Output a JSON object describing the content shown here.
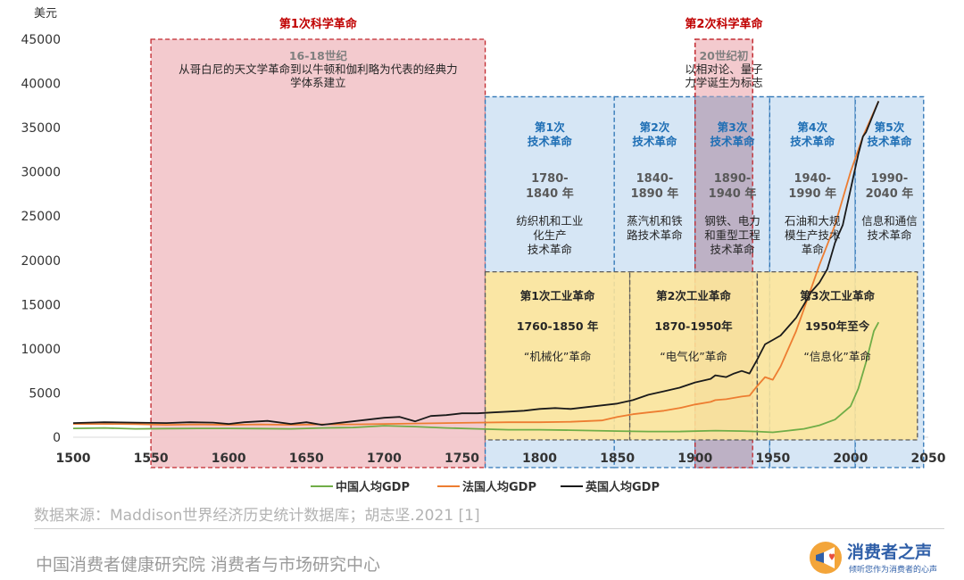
{
  "chart_data": {
    "type": "line",
    "ylabel": "美元",
    "xlim": [
      1500,
      2050
    ],
    "ylim": [
      0,
      45000
    ],
    "x_ticks": [
      1500,
      1550,
      1600,
      1650,
      1700,
      1750,
      1800,
      1850,
      1900,
      1950,
      2000,
      2050
    ],
    "y_ticks": [
      0,
      5000,
      10000,
      15000,
      20000,
      25000,
      30000,
      35000,
      40000,
      45000
    ],
    "legend_position": "bottom",
    "series": [
      {
        "name": "中国人均GDP",
        "color": "#70ad47",
        "points": [
          [
            1500,
            1000
          ],
          [
            1520,
            1050
          ],
          [
            1540,
            950
          ],
          [
            1560,
            980
          ],
          [
            1580,
            1000
          ],
          [
            1600,
            1000
          ],
          [
            1620,
            980
          ],
          [
            1640,
            950
          ],
          [
            1660,
            1050
          ],
          [
            1680,
            1100
          ],
          [
            1700,
            1300
          ],
          [
            1720,
            1200
          ],
          [
            1740,
            1050
          ],
          [
            1760,
            950
          ],
          [
            1780,
            850
          ],
          [
            1800,
            850
          ],
          [
            1820,
            800
          ],
          [
            1850,
            700
          ],
          [
            1870,
            650
          ],
          [
            1890,
            650
          ],
          [
            1913,
            750
          ],
          [
            1930,
            700
          ],
          [
            1940,
            650
          ],
          [
            1950,
            550
          ],
          [
            1960,
            750
          ],
          [
            1970,
            950
          ],
          [
            1980,
            1350
          ],
          [
            1990,
            2000
          ],
          [
            2000,
            3500
          ],
          [
            2005,
            5500
          ],
          [
            2010,
            8500
          ],
          [
            2015,
            12000
          ],
          [
            2018,
            13000
          ]
        ]
      },
      {
        "name": "法国人均GDP",
        "color": "#ed7d31",
        "points": [
          [
            1500,
            1500
          ],
          [
            1520,
            1500
          ],
          [
            1540,
            1480
          ],
          [
            1560,
            1400
          ],
          [
            1580,
            1450
          ],
          [
            1600,
            1400
          ],
          [
            1620,
            1450
          ],
          [
            1640,
            1400
          ],
          [
            1660,
            1450
          ],
          [
            1680,
            1450
          ],
          [
            1700,
            1500
          ],
          [
            1720,
            1550
          ],
          [
            1740,
            1600
          ],
          [
            1760,
            1650
          ],
          [
            1780,
            1700
          ],
          [
            1800,
            1700
          ],
          [
            1820,
            1750
          ],
          [
            1840,
            1900
          ],
          [
            1850,
            2300
          ],
          [
            1860,
            2600
          ],
          [
            1870,
            2800
          ],
          [
            1880,
            3000
          ],
          [
            1890,
            3300
          ],
          [
            1900,
            3700
          ],
          [
            1910,
            4000
          ],
          [
            1913,
            4200
          ],
          [
            1920,
            4300
          ],
          [
            1930,
            4600
          ],
          [
            1935,
            4700
          ],
          [
            1940,
            5800
          ],
          [
            1945,
            6800
          ],
          [
            1950,
            6500
          ],
          [
            1955,
            8000
          ],
          [
            1960,
            10000
          ],
          [
            1965,
            12000
          ],
          [
            1970,
            14500
          ],
          [
            1975,
            17000
          ],
          [
            1980,
            19500
          ],
          [
            1990,
            24000
          ],
          [
            2000,
            30000
          ],
          [
            2008,
            34000
          ],
          [
            2018,
            38000
          ]
        ]
      },
      {
        "name": "英国人均GDP",
        "color": "#1a1a1a",
        "points": [
          [
            1500,
            1600
          ],
          [
            1510,
            1650
          ],
          [
            1520,
            1700
          ],
          [
            1540,
            1650
          ],
          [
            1560,
            1600
          ],
          [
            1575,
            1700
          ],
          [
            1590,
            1650
          ],
          [
            1600,
            1500
          ],
          [
            1610,
            1700
          ],
          [
            1625,
            1850
          ],
          [
            1640,
            1500
          ],
          [
            1650,
            1700
          ],
          [
            1660,
            1400
          ],
          [
            1670,
            1600
          ],
          [
            1680,
            1800
          ],
          [
            1690,
            2000
          ],
          [
            1700,
            2200
          ],
          [
            1710,
            2300
          ],
          [
            1720,
            1800
          ],
          [
            1730,
            2400
          ],
          [
            1740,
            2500
          ],
          [
            1750,
            2700
          ],
          [
            1760,
            2700
          ],
          [
            1770,
            2800
          ],
          [
            1780,
            2900
          ],
          [
            1790,
            3000
          ],
          [
            1800,
            3200
          ],
          [
            1810,
            3300
          ],
          [
            1820,
            3200
          ],
          [
            1830,
            3400
          ],
          [
            1840,
            3600
          ],
          [
            1850,
            3800
          ],
          [
            1860,
            4200
          ],
          [
            1870,
            4800
          ],
          [
            1880,
            5200
          ],
          [
            1890,
            5600
          ],
          [
            1900,
            6200
          ],
          [
            1910,
            6600
          ],
          [
            1913,
            7000
          ],
          [
            1920,
            6800
          ],
          [
            1925,
            7200
          ],
          [
            1930,
            7500
          ],
          [
            1935,
            7200
          ],
          [
            1940,
            8800
          ],
          [
            1945,
            10500
          ],
          [
            1950,
            11000
          ],
          [
            1955,
            11500
          ],
          [
            1960,
            12500
          ],
          [
            1965,
            13500
          ],
          [
            1970,
            15000
          ],
          [
            1975,
            16500
          ],
          [
            1980,
            17500
          ],
          [
            1985,
            19000
          ],
          [
            1990,
            22000
          ],
          [
            1995,
            24000
          ],
          [
            2000,
            28000
          ],
          [
            2005,
            32000
          ],
          [
            2008,
            34000
          ],
          [
            2010,
            34500
          ],
          [
            2018,
            38000
          ]
        ]
      }
    ],
    "eras": [
      {
        "kind": "science",
        "range": [
          1550,
          1765
        ],
        "y_top": 45000,
        "title": "第1次科学革命",
        "period": "16-18世纪",
        "desc": [
          "从哥白尼的天文学革命到以牛顿和伽利略为代表的经典力",
          "学体系建立"
        ]
      },
      {
        "kind": "science",
        "range": [
          1900,
          1937
        ],
        "y_top": 45000,
        "title": "第2次科学革命",
        "period": "20世纪初",
        "desc": [
          "以相对论、量子",
          "力学诞生为标志"
        ]
      },
      {
        "kind": "tech",
        "range": [
          1765,
          1848
        ],
        "y_top": 38500,
        "title": [
          "第1次",
          "技术革命"
        ],
        "period": [
          "1780-",
          "1840 年"
        ],
        "desc": [
          "纺织机和工业",
          "化生产",
          "技术革命"
        ]
      },
      {
        "kind": "tech",
        "range": [
          1848,
          1900
        ],
        "y_top": 38500,
        "title": [
          "第2次",
          "技术革命"
        ],
        "period": [
          "1840-",
          "1890 年"
        ],
        "desc": [
          "蒸汽机和铁",
          "路技术革命"
        ]
      },
      {
        "kind": "tech",
        "range": [
          1900,
          1948
        ],
        "y_top": 38500,
        "title": [
          "第3次",
          "技术革命"
        ],
        "period": [
          "1890-",
          "1940 年"
        ],
        "desc": [
          "钢铁、电力",
          "和重型工程",
          "技术革命"
        ]
      },
      {
        "kind": "tech",
        "range": [
          1948,
          2003
        ],
        "y_top": 38500,
        "title": [
          "第4次",
          "技术革命"
        ],
        "period": [
          "1940-",
          "1990 年"
        ],
        "desc": [
          "石油和大规",
          "模生产技术",
          "革命"
        ]
      },
      {
        "kind": "tech",
        "range": [
          2003,
          2047
        ],
        "y_top": 38500,
        "title": [
          "第5次",
          "技术革命"
        ],
        "period": [
          "1990-",
          "2040 年"
        ],
        "desc": [
          "信息和通信",
          "技术革命"
        ]
      },
      {
        "kind": "industrial",
        "range": [
          1765,
          1858
        ],
        "y_range": [
          -300,
          18700
        ],
        "title": "第1次工业革命",
        "period": "1760-1850 年",
        "desc": "“机械化”革命"
      },
      {
        "kind": "industrial",
        "range": [
          1858,
          1940
        ],
        "y_range": [
          -300,
          18700
        ],
        "title": "第2次工业革命",
        "period": "1870-1950年",
        "desc": "“电气化”革命"
      },
      {
        "kind": "industrial",
        "range": [
          1940,
          2043
        ],
        "y_range": [
          -300,
          18700
        ],
        "title": "第3次工业革命",
        "period": "1950年至今",
        "desc": "“信息化”革命"
      }
    ]
  },
  "source_text": "数据来源：Maddison世界经济历史统计数据库；胡志坚.2021 [1]",
  "footer_org": "中国消费者健康研究院 消费者与市场研究中心",
  "logo": {
    "name": "消费者之声",
    "tagline": "倾听您作为消费者的心声"
  },
  "colors": {
    "science_fill": "#f2c4c9",
    "science_border": "#c1272d",
    "science_title": "#c00000",
    "tech_fill": "#cfe2f3",
    "tech_border": "#2e75b6",
    "tech_title": "#1f6fb5",
    "industrial_fill": "#ffe699",
    "industrial_border": "#595959",
    "overlap_fill": "#bcaec2"
  }
}
